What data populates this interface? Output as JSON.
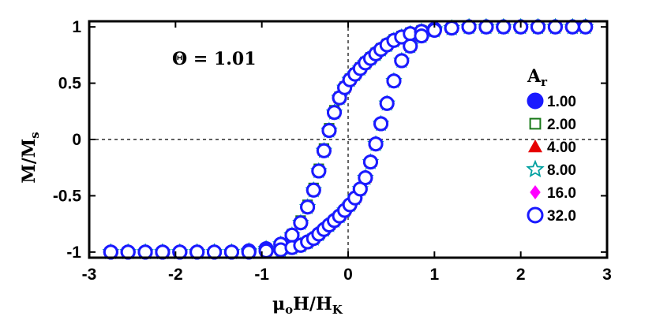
{
  "chart_data": {
    "type": "scatter",
    "title": "",
    "xlabel": {
      "base": "μ",
      "sub1": "o",
      "mid": "H/H",
      "sub2": "K"
    },
    "ylabel": {
      "base": "M/M",
      "sub": "s"
    },
    "xlim": [
      -3,
      3
    ],
    "ylim": [
      -1.05,
      1.05
    ],
    "xticks": [
      "-3",
      "-2",
      "-1",
      "0",
      "1",
      "2",
      "3"
    ],
    "yticks": [
      "-1",
      "-0.5",
      "0",
      "0.5",
      "1"
    ],
    "xtick_values": [
      -3,
      -2,
      -1,
      0,
      1,
      2,
      3
    ],
    "ytick_values": [
      -1,
      -0.5,
      0,
      0.5,
      1
    ],
    "annotation": "Θ = 1.01",
    "legend": {
      "title_base": "A",
      "title_sub": "r",
      "placement": "right"
    },
    "x": [
      -2.75,
      -2.55,
      -2.35,
      -2.15,
      -1.95,
      -1.75,
      -1.55,
      -1.35,
      -1.15,
      -0.95,
      -0.78,
      -0.65,
      -0.55,
      -0.47,
      -0.4,
      -0.34,
      -0.28,
      -0.22,
      -0.16,
      -0.1,
      -0.04,
      0.02,
      0.08,
      0.14,
      0.2,
      0.26,
      0.32,
      0.38,
      0.45,
      0.53,
      0.62,
      0.72,
      0.85,
      1.0,
      1.2,
      1.4,
      1.6,
      1.8,
      2.0,
      2.2,
      2.4,
      2.6,
      2.75
    ],
    "series": [
      {
        "name": "1.00",
        "marker": "circle-filled",
        "color": "#1a1aff",
        "descending": [
          -1.0,
          -1.0,
          -1.0,
          -1.0,
          -1.0,
          -1.0,
          -1.0,
          -1.0,
          -0.99,
          -0.97,
          -0.93,
          -0.85,
          -0.74,
          -0.6,
          -0.45,
          -0.28,
          -0.1,
          0.08,
          0.24,
          0.37,
          0.46,
          0.53,
          0.58,
          0.63,
          0.68,
          0.72,
          0.76,
          0.8,
          0.84,
          0.88,
          0.91,
          0.94,
          0.96,
          0.98,
          0.99,
          1.0,
          1.0,
          1.0,
          1.0,
          1.0,
          1.0,
          1.0,
          1.0
        ],
        "ascending": [
          -1.0,
          -1.0,
          -1.0,
          -1.0,
          -1.0,
          -1.0,
          -1.0,
          -1.0,
          -1.0,
          -0.99,
          -0.98,
          -0.96,
          -0.94,
          -0.91,
          -0.88,
          -0.84,
          -0.8,
          -0.76,
          -0.72,
          -0.68,
          -0.63,
          -0.58,
          -0.52,
          -0.44,
          -0.34,
          -0.2,
          -0.04,
          0.14,
          0.32,
          0.52,
          0.7,
          0.83,
          0.92,
          0.97,
          0.99,
          1.0,
          1.0,
          1.0,
          1.0,
          1.0,
          1.0,
          1.0,
          1.0
        ]
      },
      {
        "name": "2.00",
        "marker": "square-open",
        "color": "#1a7a1a",
        "descending": [
          -1.0,
          -1.0,
          -1.0,
          -1.0,
          -1.0,
          -1.0,
          -1.0,
          -1.0,
          -0.99,
          -0.97,
          -0.93,
          -0.84,
          -0.72,
          -0.58,
          -0.43,
          -0.26,
          -0.08,
          0.1,
          0.26,
          0.38,
          0.47,
          0.54,
          0.59,
          0.64,
          0.69,
          0.73,
          0.77,
          0.81,
          0.85,
          0.89,
          0.92,
          0.95,
          0.97,
          0.98,
          0.99,
          1.0,
          1.0,
          1.0,
          1.0,
          1.0,
          1.0,
          1.0,
          1.0
        ],
        "ascending": [
          -1.0,
          -1.0,
          -1.0,
          -1.0,
          -1.0,
          -1.0,
          -1.0,
          -1.0,
          -1.0,
          -0.99,
          -0.98,
          -0.96,
          -0.94,
          -0.91,
          -0.88,
          -0.84,
          -0.8,
          -0.76,
          -0.72,
          -0.68,
          -0.63,
          -0.58,
          -0.52,
          -0.44,
          -0.34,
          -0.2,
          -0.04,
          0.14,
          0.32,
          0.52,
          0.7,
          0.83,
          0.92,
          0.97,
          0.99,
          1.0,
          1.0,
          1.0,
          1.0,
          1.0,
          1.0,
          1.0,
          1.0
        ]
      },
      {
        "name": "4.00",
        "marker": "triangle-filled",
        "color": "#e60000",
        "descending": [
          -1.0,
          -1.0,
          -1.0,
          -1.0,
          -1.0,
          -1.0,
          -1.0,
          -1.0,
          -0.99,
          -0.97,
          -0.93,
          -0.85,
          -0.74,
          -0.6,
          -0.45,
          -0.28,
          -0.1,
          0.08,
          0.24,
          0.37,
          0.46,
          0.53,
          0.58,
          0.63,
          0.68,
          0.72,
          0.76,
          0.8,
          0.84,
          0.88,
          0.91,
          0.94,
          0.96,
          0.98,
          0.99,
          1.0,
          1.0,
          1.0,
          1.0,
          1.0,
          1.0,
          1.0,
          1.0
        ],
        "ascending": [
          -1.0,
          -1.0,
          -1.0,
          -1.0,
          -1.0,
          -1.0,
          -1.0,
          -1.0,
          -1.0,
          -0.99,
          -0.98,
          -0.96,
          -0.94,
          -0.91,
          -0.88,
          -0.84,
          -0.8,
          -0.76,
          -0.72,
          -0.68,
          -0.63,
          -0.58,
          -0.52,
          -0.44,
          -0.34,
          -0.2,
          -0.04,
          0.14,
          0.32,
          0.52,
          0.7,
          0.83,
          0.92,
          0.97,
          0.99,
          1.0,
          1.0,
          1.0,
          1.0,
          1.0,
          1.0,
          1.0,
          1.0
        ]
      },
      {
        "name": "8.00",
        "marker": "star-open",
        "color": "#00a0a0",
        "descending": [
          -1.0,
          -1.0,
          -1.0,
          -1.0,
          -1.0,
          -1.0,
          -1.0,
          -1.0,
          -0.99,
          -0.97,
          -0.93,
          -0.85,
          -0.74,
          -0.6,
          -0.45,
          -0.28,
          -0.1,
          0.08,
          0.24,
          0.37,
          0.46,
          0.53,
          0.58,
          0.63,
          0.68,
          0.72,
          0.76,
          0.8,
          0.84,
          0.88,
          0.91,
          0.94,
          0.96,
          0.98,
          0.99,
          1.0,
          1.0,
          1.0,
          1.0,
          1.0,
          1.0,
          1.0,
          1.0
        ],
        "ascending": [
          -1.0,
          -1.0,
          -1.0,
          -1.0,
          -1.0,
          -1.0,
          -1.0,
          -1.0,
          -1.0,
          -0.99,
          -0.98,
          -0.96,
          -0.94,
          -0.91,
          -0.88,
          -0.84,
          -0.8,
          -0.76,
          -0.72,
          -0.68,
          -0.63,
          -0.58,
          -0.52,
          -0.44,
          -0.34,
          -0.2,
          -0.04,
          0.14,
          0.32,
          0.52,
          0.7,
          0.83,
          0.92,
          0.97,
          0.99,
          1.0,
          1.0,
          1.0,
          1.0,
          1.0,
          1.0,
          1.0,
          1.0
        ]
      },
      {
        "name": "16.0",
        "marker": "diamond-filled",
        "color": "#ff00ff",
        "descending": [
          -1.0,
          -1.0,
          -1.0,
          -1.0,
          -1.0,
          -1.0,
          -1.0,
          -1.0,
          -0.99,
          -0.97,
          -0.93,
          -0.85,
          -0.74,
          -0.6,
          -0.45,
          -0.28,
          -0.1,
          0.08,
          0.24,
          0.37,
          0.46,
          0.53,
          0.58,
          0.63,
          0.68,
          0.72,
          0.76,
          0.8,
          0.84,
          0.88,
          0.91,
          0.94,
          0.96,
          0.98,
          0.99,
          1.0,
          1.0,
          1.0,
          1.0,
          1.0,
          1.0,
          1.0,
          1.0
        ],
        "ascending": [
          -1.0,
          -1.0,
          -1.0,
          -1.0,
          -1.0,
          -1.0,
          -1.0,
          -1.0,
          -1.0,
          -0.99,
          -0.98,
          -0.96,
          -0.94,
          -0.91,
          -0.88,
          -0.84,
          -0.8,
          -0.76,
          -0.72,
          -0.68,
          -0.63,
          -0.58,
          -0.52,
          -0.44,
          -0.34,
          -0.2,
          -0.04,
          0.14,
          0.32,
          0.52,
          0.7,
          0.83,
          0.92,
          0.97,
          0.99,
          1.0,
          1.0,
          1.0,
          1.0,
          1.0,
          1.0,
          1.0,
          1.0
        ]
      },
      {
        "name": "32.0",
        "marker": "circle-open",
        "color": "#1a1aff",
        "descending": [
          -1.0,
          -1.0,
          -1.0,
          -1.0,
          -1.0,
          -1.0,
          -1.0,
          -1.0,
          -0.99,
          -0.97,
          -0.93,
          -0.85,
          -0.74,
          -0.6,
          -0.45,
          -0.28,
          -0.1,
          0.08,
          0.24,
          0.37,
          0.46,
          0.53,
          0.58,
          0.63,
          0.68,
          0.72,
          0.76,
          0.8,
          0.84,
          0.88,
          0.91,
          0.94,
          0.96,
          0.98,
          0.99,
          1.0,
          1.0,
          1.0,
          1.0,
          1.0,
          1.0,
          1.0,
          1.0
        ],
        "ascending": [
          -1.0,
          -1.0,
          -1.0,
          -1.0,
          -1.0,
          -1.0,
          -1.0,
          -1.0,
          -1.0,
          -0.99,
          -0.98,
          -0.96,
          -0.94,
          -0.91,
          -0.88,
          -0.84,
          -0.8,
          -0.76,
          -0.72,
          -0.68,
          -0.63,
          -0.58,
          -0.52,
          -0.44,
          -0.34,
          -0.2,
          -0.04,
          0.14,
          0.32,
          0.52,
          0.7,
          0.83,
          0.92,
          0.97,
          0.99,
          1.0,
          1.0,
          1.0,
          1.0,
          1.0,
          1.0,
          1.0,
          1.0
        ]
      }
    ],
    "grid": false,
    "zero_lines": "dashed"
  }
}
